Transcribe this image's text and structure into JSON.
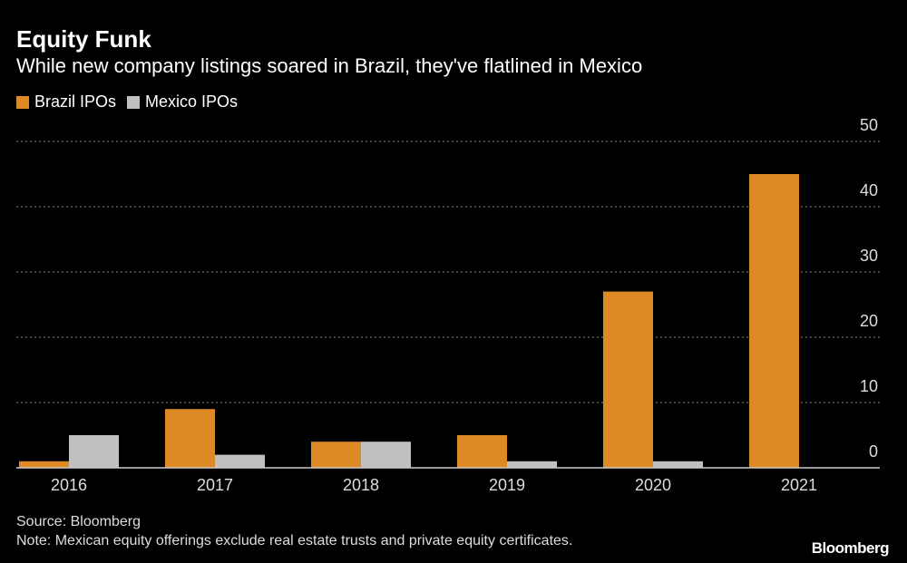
{
  "title": "Equity Funk",
  "subtitle": "While new company listings soared in Brazil, they've flatlined in Mexico",
  "source": "Source: Bloomberg",
  "note": "Note: Mexican equity offerings exclude real estate trusts and private equity certificates.",
  "logo": "Bloomberg",
  "colors": {
    "brazil": "#dd8a26",
    "mexico": "#c0c0c0",
    "background": "#000000"
  },
  "chart_data": {
    "type": "bar",
    "title": "Equity Funk",
    "categories": [
      "2016",
      "2017",
      "2018",
      "2019",
      "2020",
      "2021"
    ],
    "series": [
      {
        "name": "Brazil IPOs",
        "values": [
          1,
          9,
          4,
          5,
          27,
          45
        ]
      },
      {
        "name": "Mexico IPOs",
        "values": [
          5,
          2,
          4,
          1,
          1,
          0
        ]
      }
    ],
    "ylim": [
      0,
      50
    ],
    "yticks": [
      "0",
      "10",
      "20",
      "30",
      "40",
      "50"
    ],
    "grid": true,
    "y_axis_position": "right",
    "legend_position": "top-left"
  }
}
